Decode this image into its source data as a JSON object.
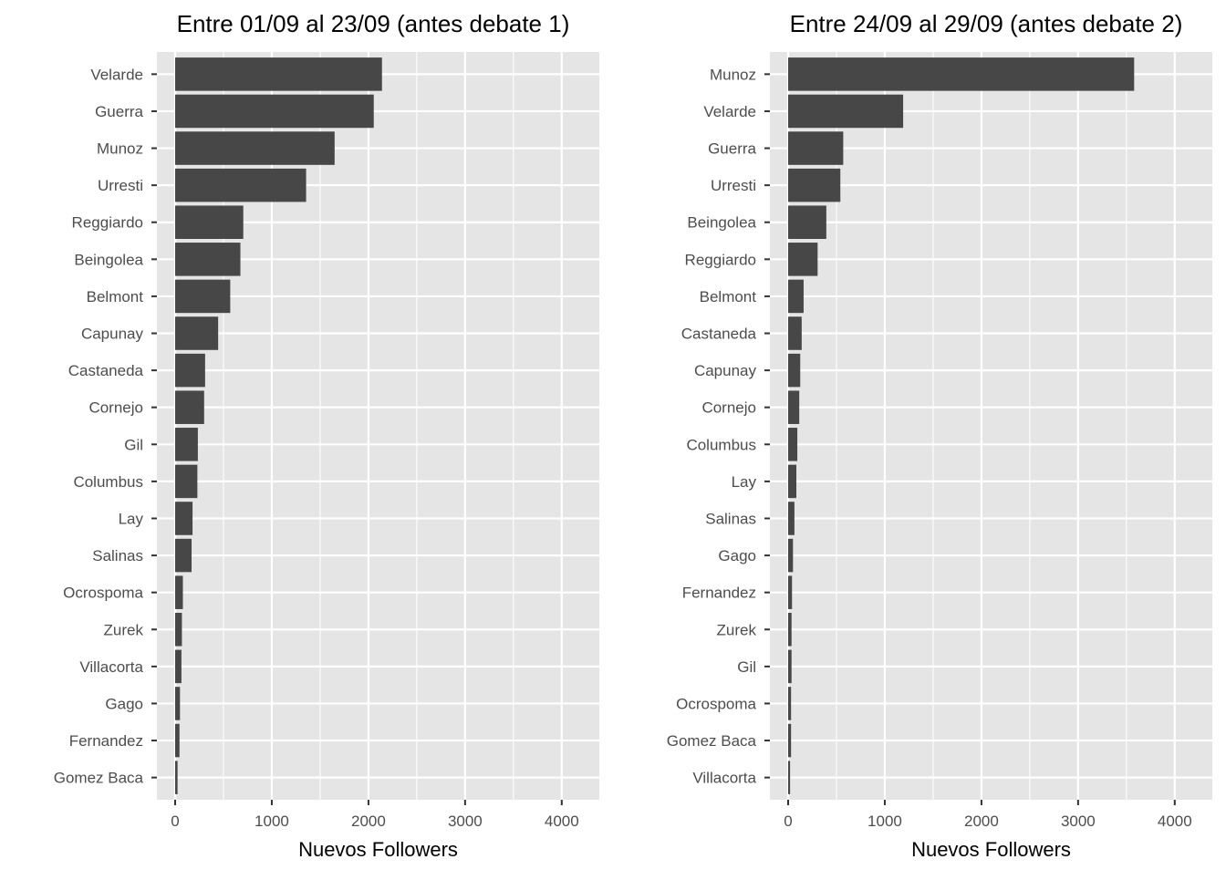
{
  "chart_data": [
    {
      "type": "bar",
      "orientation": "horizontal",
      "title": "Entre 01/09 al 23/09 (antes debate 1)",
      "xlabel": "Nuevos Followers",
      "ylabel": "",
      "xlim": [
        0,
        4200
      ],
      "xticks": [
        0,
        1000,
        2000,
        3000,
        4000
      ],
      "grid": true,
      "categories": [
        "Velarde",
        "Guerra",
        "Munoz",
        "Urresti",
        "Reggiardo",
        "Beingolea",
        "Belmont",
        "Capunay",
        "Castaneda",
        "Cornejo",
        "Gil",
        "Columbus",
        "Lay",
        "Salinas",
        "Ocrospoma",
        "Zurek",
        "Villacorta",
        "Gago",
        "Fernandez",
        "Gomez Baca"
      ],
      "values": [
        2140,
        2055,
        1650,
        1355,
        705,
        675,
        570,
        445,
        310,
        300,
        235,
        230,
        180,
        170,
        80,
        70,
        65,
        50,
        45,
        25
      ],
      "colors": {
        "bar": "#474747",
        "panel": "#e5e5e5",
        "grid": "#ffffff"
      }
    },
    {
      "type": "bar",
      "orientation": "horizontal",
      "title": "Entre 24/09 al 29/09 (antes debate 2)",
      "xlabel": "Nuevos Followers",
      "ylabel": "",
      "xlim": [
        0,
        4200
      ],
      "xticks": [
        0,
        1000,
        2000,
        3000,
        4000
      ],
      "grid": true,
      "categories": [
        "Munoz",
        "Velarde",
        "Guerra",
        "Urresti",
        "Beingolea",
        "Reggiardo",
        "Belmont",
        "Castaneda",
        "Capunay",
        "Cornejo",
        "Columbus",
        "Lay",
        "Salinas",
        "Gago",
        "Fernandez",
        "Zurek",
        "Gil",
        "Ocrospoma",
        "Gomez Baca",
        "Villacorta"
      ],
      "values": [
        3580,
        1190,
        570,
        540,
        395,
        305,
        160,
        140,
        125,
        115,
        95,
        85,
        65,
        50,
        40,
        35,
        35,
        30,
        30,
        20
      ],
      "colors": {
        "bar": "#474747",
        "panel": "#e5e5e5",
        "grid": "#ffffff"
      }
    }
  ]
}
